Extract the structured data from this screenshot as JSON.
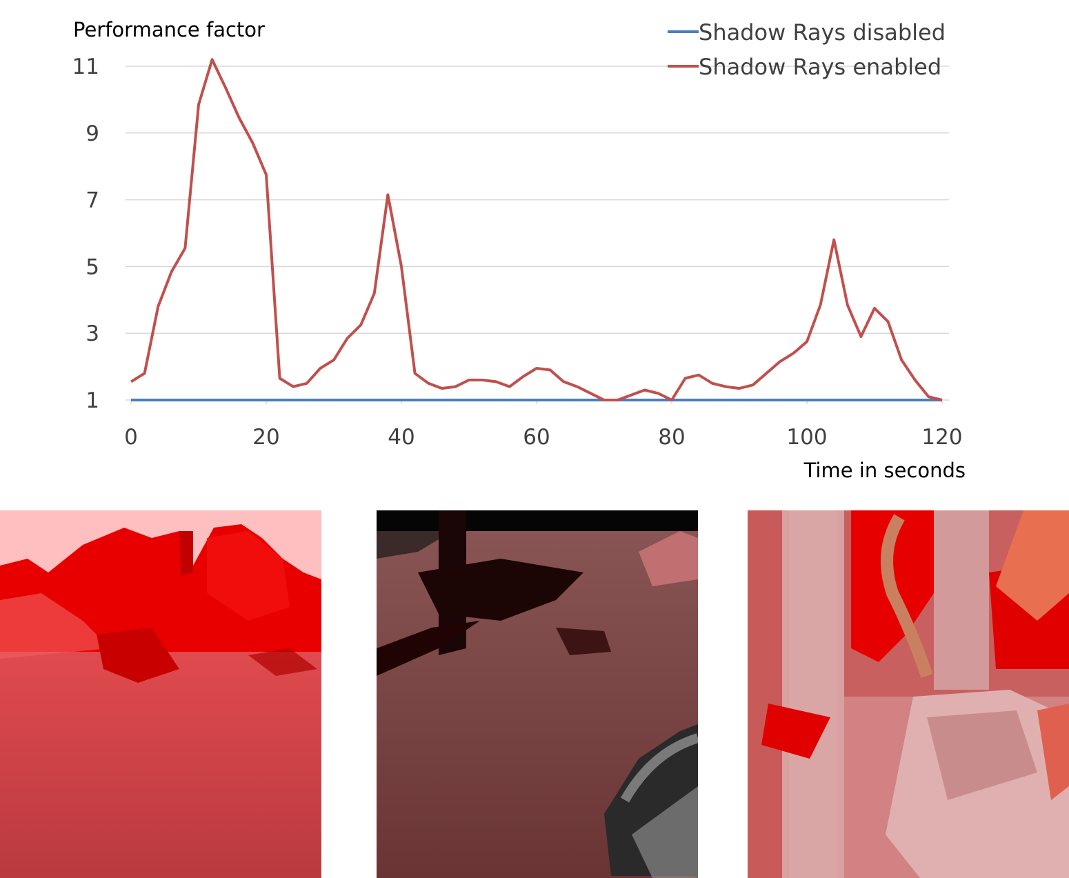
{
  "chart_data": {
    "type": "line",
    "ylabel": "Performance factor",
    "xlabel": "Time in seconds",
    "xlim": [
      0,
      120
    ],
    "ylim": [
      1,
      11
    ],
    "xticks": [
      0,
      20,
      40,
      60,
      80,
      100,
      120
    ],
    "yticks": [
      1,
      3,
      5,
      7,
      9,
      11
    ],
    "grid": "horizontal",
    "legend_position": "top-right",
    "colors": {
      "disabled": "#4a7ebb",
      "enabled": "#c0504d",
      "grid": "#d9d9d9"
    },
    "series": [
      {
        "name": "Shadow Rays disabled",
        "x": [
          0,
          120
        ],
        "y": [
          1,
          1
        ]
      },
      {
        "name": "Shadow Rays enabled",
        "x": [
          0,
          2,
          4,
          6,
          8,
          10,
          12,
          14,
          16,
          18,
          20,
          22,
          24,
          26,
          28,
          30,
          32,
          34,
          36,
          38,
          40,
          42,
          44,
          46,
          48,
          50,
          52,
          54,
          56,
          58,
          60,
          62,
          64,
          66,
          68,
          70,
          72,
          74,
          76,
          78,
          80,
          82,
          84,
          86,
          88,
          90,
          92,
          94,
          96,
          98,
          100,
          102,
          104,
          106,
          108,
          110,
          112,
          114,
          116,
          118,
          120
        ],
        "y": [
          1.55,
          1.8,
          3.8,
          4.85,
          5.55,
          9.85,
          11.2,
          10.35,
          9.45,
          8.7,
          7.75,
          1.65,
          1.4,
          1.5,
          1.95,
          2.2,
          2.85,
          3.25,
          4.2,
          7.15,
          5.0,
          1.8,
          1.5,
          1.35,
          1.4,
          1.6,
          1.6,
          1.55,
          1.4,
          1.7,
          1.95,
          1.9,
          1.55,
          1.4,
          1.2,
          1.0,
          1.0,
          1.15,
          1.3,
          1.2,
          1.0,
          1.65,
          1.75,
          1.5,
          1.4,
          1.35,
          1.45,
          1.8,
          2.15,
          2.4,
          2.75,
          3.85,
          5.8,
          3.85,
          2.9,
          3.75,
          3.35,
          2.2,
          1.6,
          1.1,
          1.0
        ]
      }
    ]
  },
  "images": [
    {
      "name": "render-1"
    },
    {
      "name": "render-2"
    },
    {
      "name": "render-3"
    }
  ]
}
